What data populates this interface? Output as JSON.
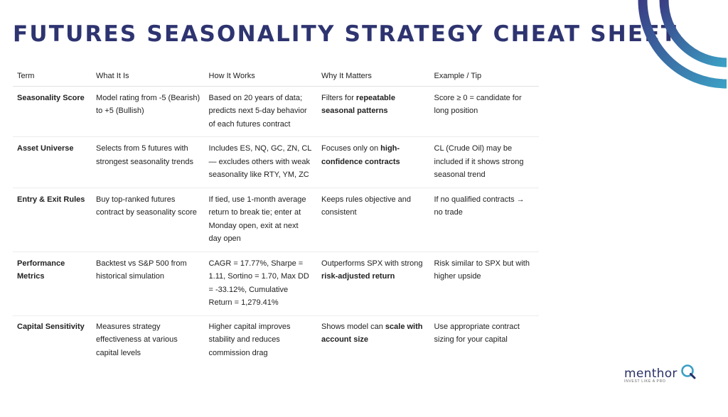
{
  "title": "FUTURES SEASONALITY STRATEGY CHEAT SHEET",
  "colors": {
    "title": "#2e3470",
    "arc_dark": "#3a3f85",
    "arc_light": "#3b9fc4"
  },
  "table": {
    "headers": [
      "Term",
      "What It Is",
      "How It Works",
      "Why It Matters",
      "Example / Tip"
    ],
    "rows": [
      {
        "term": "Seasonality Score",
        "what": "Model rating from -5 (Bearish) to +5 (Bullish)",
        "how": "Based on 20 years of data; predicts next 5-day behavior of each futures contract",
        "why_pre": "Filters for ",
        "why_bold": "repeatable seasonal patterns",
        "why_post": "",
        "example": "Score ≥ 0 = candidate for long position"
      },
      {
        "term": "Asset Universe",
        "what": "Selects from 5 futures with strongest seasonality trends",
        "how": "Includes ES, NQ, GC, ZN, CL — excludes others with weak seasonality like RTY, YM, ZC",
        "why_pre": "Focuses only on ",
        "why_bold": "high-confidence contracts",
        "why_post": "",
        "example": "CL (Crude Oil) may be included if it shows strong seasonal trend"
      },
      {
        "term": "Entry & Exit Rules",
        "what": "Buy top-ranked futures contract by seasonality score",
        "how": "If tied, use 1-month average return to break tie; enter at Monday open, exit at next day open",
        "why_pre": "Keeps rules objective and consistent",
        "why_bold": "",
        "why_post": "",
        "example": "If no qualified contracts → no trade"
      },
      {
        "term": "Performance Metrics",
        "what": "Backtest vs S&P 500 from historical simulation",
        "how": "CAGR = 17.77%, Sharpe = 1.11, Sortino = 1.70, Max DD = -33.12%, Cumulative Return = 1,279.41%",
        "why_pre": "Outperforms SPX with strong ",
        "why_bold": "risk-adjusted return",
        "why_post": "",
        "example": "Risk similar to SPX but with higher upside"
      },
      {
        "term": "Capital Sensitivity",
        "what": "Measures strategy effectiveness at various capital levels",
        "how": "Higher capital improves stability and reduces commission drag",
        "why_pre": "Shows model can ",
        "why_bold": "scale with account size",
        "why_post": "",
        "example": "Use appropriate contract sizing for your capital"
      }
    ]
  },
  "logo": {
    "name": "menthor",
    "tagline": "INVEST LIKE A PRO",
    "icon": "q-magnifier-icon"
  }
}
